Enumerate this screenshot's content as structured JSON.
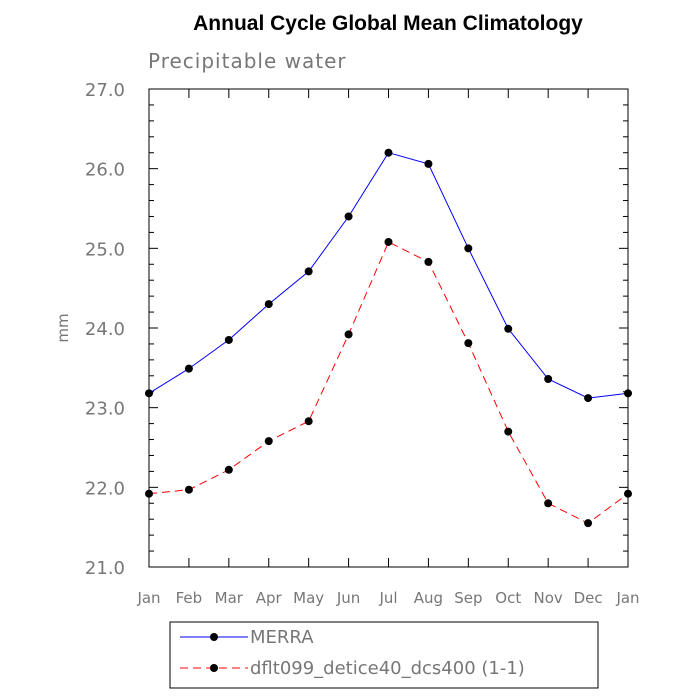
{
  "chart_data": {
    "type": "line",
    "title": "Annual Cycle Global Mean Climatology",
    "subtitle": "Precipitable water",
    "xlabel": "",
    "ylabel": "mm",
    "categories": [
      "Jan",
      "Feb",
      "Mar",
      "Apr",
      "May",
      "Jun",
      "Jul",
      "Aug",
      "Sep",
      "Oct",
      "Nov",
      "Dec",
      "Jan"
    ],
    "ylim": [
      21.0,
      27.0
    ],
    "yticks": [
      "21.0",
      "22.0",
      "23.0",
      "24.0",
      "25.0",
      "26.0",
      "27.0"
    ],
    "grid": false,
    "legend_position": "bottom",
    "series": [
      {
        "name": "MERRA",
        "color": "#0000ff",
        "line_style": "solid",
        "marker": "filled-circle",
        "values": [
          23.18,
          23.49,
          23.85,
          24.3,
          24.71,
          25.4,
          26.2,
          26.06,
          25.0,
          23.99,
          23.36,
          23.12,
          23.18
        ]
      },
      {
        "name": "dflt099_detice40_dcs400 (1-1)",
        "color": "#ff0000",
        "line_style": "dashed",
        "marker": "filled-circle",
        "values": [
          21.92,
          21.97,
          22.22,
          22.58,
          22.83,
          23.92,
          25.08,
          24.83,
          23.81,
          22.7,
          21.8,
          21.55,
          21.92
        ]
      }
    ]
  }
}
